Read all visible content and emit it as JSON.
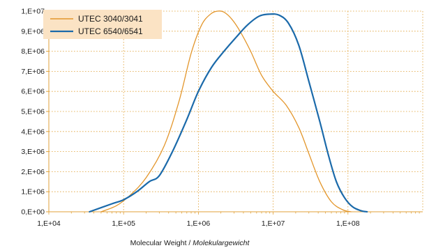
{
  "chart_data": {
    "type": "line",
    "xscale": "log",
    "xlabel": "Molecular Weight",
    "xlabel_italic": "Molekulargewicht",
    "xlim": [
      10000,
      1000000000
    ],
    "ylim": [
      0,
      10000000
    ],
    "x_tick_values": [
      10000,
      100000,
      1000000,
      10000000,
      100000000
    ],
    "x_tick_labels": [
      "1,E+04",
      "1,E+05",
      "1,E+06",
      "1,E+07",
      "1,E+08"
    ],
    "y_tick_values": [
      0,
      1000000,
      2000000,
      3000000,
      4000000,
      5000000,
      6000000,
      7000000,
      8000000,
      9000000,
      10000000
    ],
    "y_tick_labels": [
      "0,E+00",
      "1,E+06",
      "2,E+06",
      "3,E+06",
      "4,E+06",
      "5,E+06",
      "6,E+06",
      "7,E+06",
      "8,E+06",
      "9,E+06",
      "1,E+07"
    ],
    "grid": true,
    "legend_position": "top-left",
    "series": [
      {
        "name": "UTEC 3040/3041",
        "color": "#e3962b",
        "x": [
          50000,
          80000,
          120000,
          200000,
          350000,
          550000,
          800000,
          1100000,
          1450000,
          1800000,
          2200000,
          2800000,
          3600000,
          5000000,
          7000000,
          10000000,
          15000000,
          22000000,
          30000000,
          42000000,
          60000000,
          85000000,
          110000000
        ],
        "y": [
          0,
          300000,
          800000,
          1700000,
          3300000,
          5500000,
          7900000,
          9300000,
          9850000,
          10000000,
          9950000,
          9600000,
          9000000,
          8000000,
          6800000,
          6000000,
          5300000,
          4200000,
          2900000,
          1500000,
          500000,
          100000,
          0
        ]
      },
      {
        "name": "UTEC 6540/6541",
        "color": "#1b6aaa",
        "x": [
          35000,
          70000,
          100000,
          150000,
          220000,
          300000,
          450000,
          700000,
          1000000,
          1500000,
          2200000,
          3200000,
          4500000,
          6500000,
          9000000,
          12000000,
          16000000,
          22000000,
          30000000,
          42000000,
          55000000,
          70000000,
          90000000,
          115000000,
          150000000,
          180000000
        ],
        "y": [
          0,
          400000,
          600000,
          1000000,
          1500000,
          1800000,
          3000000,
          4600000,
          6000000,
          7200000,
          8000000,
          8700000,
          9300000,
          9750000,
          9850000,
          9800000,
          9400000,
          8300000,
          6500000,
          4500000,
          2800000,
          1500000,
          700000,
          250000,
          50000,
          0
        ]
      }
    ]
  }
}
